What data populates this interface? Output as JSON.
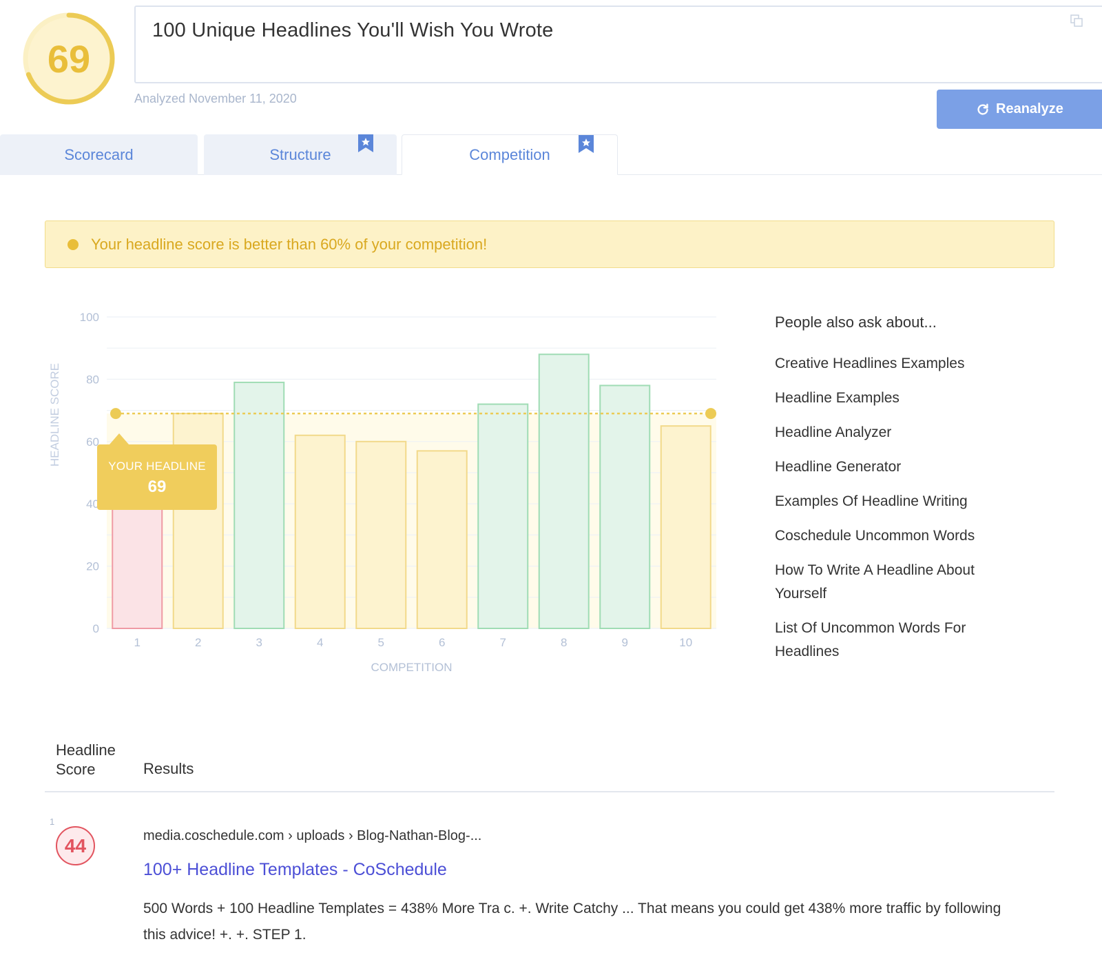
{
  "score": {
    "value": "69",
    "fraction": 0.69,
    "ring_color": "#eccb55",
    "track_color": "#fbf0c4"
  },
  "headline": {
    "text": "100 Unique Headlines You'll Wish You Wrote",
    "copy_icon": "copy-icon"
  },
  "analyzed_label": "Analyzed November 11, 2020",
  "reanalyze": {
    "label": "Reanalyze",
    "icon": "refresh-icon",
    "color": "#7ba0e6"
  },
  "tabs": [
    {
      "label": "Scorecard",
      "active": false,
      "bookmark": false
    },
    {
      "label": "Structure",
      "active": false,
      "bookmark": true
    },
    {
      "label": "Competition",
      "active": true,
      "bookmark": true
    }
  ],
  "alert": {
    "text": "Your headline score is better than 60% of your competition!",
    "color": "#e9be3a"
  },
  "chart_data": {
    "type": "bar",
    "categories": [
      "1",
      "2",
      "3",
      "4",
      "5",
      "6",
      "7",
      "8",
      "9",
      "10"
    ],
    "values": [
      44,
      69,
      79,
      62,
      60,
      57,
      72,
      88,
      78,
      65
    ],
    "categories_status": [
      "low",
      "medium",
      "high",
      "medium",
      "medium",
      "medium",
      "high",
      "high",
      "high",
      "medium"
    ],
    "reference_line": {
      "value": 69,
      "label": "YOUR HEADLINE",
      "value_label": "69"
    },
    "xlabel": "COMPETITION",
    "ylabel": "HEADLINE SCORE",
    "ylim": [
      0,
      100
    ],
    "yticks": [
      "0",
      "20",
      "40",
      "60",
      "80",
      "100"
    ],
    "grid": true,
    "colors": {
      "low_fill": "#fbe3e6",
      "low_stroke": "#ef9aa4",
      "medium_fill": "#fdf3cf",
      "medium_stroke": "#f2d98a",
      "high_fill": "#e3f4ea",
      "high_stroke": "#9fdcb4",
      "reference": "#eccb55"
    }
  },
  "people_also_ask": {
    "title": "People also ask about...",
    "items": [
      "Creative Headlines Examples",
      "Headline Examples",
      "Headline Analyzer",
      "Headline Generator",
      "Examples Of Headline Writing",
      "Coschedule Uncommon Words",
      "How To Write A Headline About Yourself",
      "List Of Uncommon Words For Headlines"
    ]
  },
  "results_table": {
    "headers": {
      "score_line1": "Headline",
      "score_line2": "Score",
      "results": "Results"
    },
    "rows": [
      {
        "index": "1",
        "score": "44",
        "url": "media.coschedule.com › uploads › Blog-Nathan-Blog-...",
        "title": "100+ Headline Templates - CoSchedule",
        "snippet": "500 Words + 100 Headline Templates = 438% More Tra c. +. Write Catchy ... That means you could get 438% more traffic by following this advice! +. +. STEP 1."
      }
    ]
  }
}
